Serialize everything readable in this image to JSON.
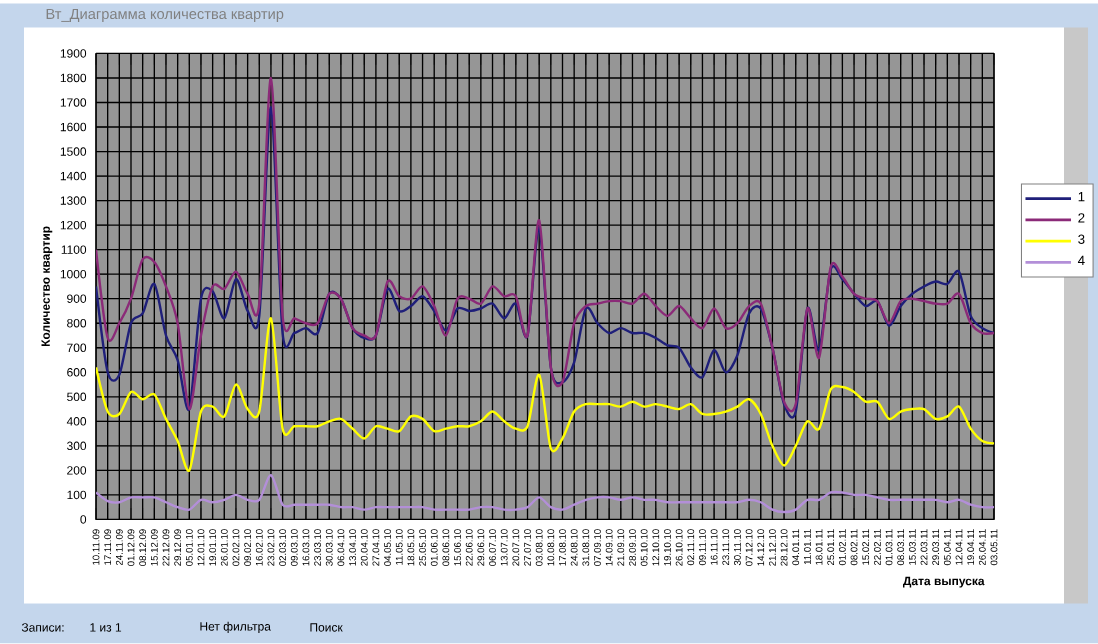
{
  "chart_data": {
    "type": "line",
    "title": "Вт_Диаграмма количества квартир",
    "xlabel": "Дата выпуска",
    "ylabel": "Количество квартир",
    "categories": [
      "10.11.09",
      "17.11.09",
      "24.11.09",
      "01.12.09",
      "08.12.09",
      "15.12.09",
      "22.12.09",
      "29.12.09",
      "05.01.10",
      "12.01.10",
      "19.01.10",
      "26.01.10",
      "02.02.10",
      "09.02.10",
      "16.02.10",
      "23.02.10",
      "02.03.10",
      "09.03.10",
      "16.03.10",
      "23.03.10",
      "30.03.10",
      "06.04.10",
      "13.04.10",
      "20.04.10",
      "27.04.10",
      "04.05.10",
      "11.05.10",
      "18.05.10",
      "25.05.10",
      "01.06.10",
      "08.06.10",
      "15.06.10",
      "22.06.10",
      "29.06.10",
      "06.07.10",
      "13.07.10",
      "20.07.10",
      "27.07.10",
      "03.08.10",
      "10.08.10",
      "17.08.10",
      "24.08.10",
      "31.08.10",
      "07.09.10",
      "14.09.10",
      "21.09.10",
      "28.09.10",
      "05.10.10",
      "12.10.10",
      "19.10.10",
      "26.10.10",
      "02.11.10",
      "09.11.10",
      "16.11.10",
      "23.11.10",
      "30.11.10",
      "07.12.10",
      "14.12.10",
      "21.12.10",
      "28.12.10",
      "04.01.11",
      "11.01.11",
      "18.01.11",
      "25.01.11",
      "01.02.11",
      "08.02.11",
      "15.02.11",
      "22.02.11",
      "01.03.11",
      "08.03.11",
      "15.03.11",
      "22.03.11",
      "29.03.11",
      "05.04.11",
      "12.04.11",
      "19.04.11",
      "26.04.11",
      "03.05.11"
    ],
    "series": [
      {
        "name": "1",
        "color": "#1f1f7a",
        "values": [
          950,
          600,
          590,
          800,
          840,
          960,
          750,
          650,
          450,
          900,
          930,
          820,
          980,
          850,
          830,
          1680,
          760,
          760,
          780,
          760,
          920,
          900,
          780,
          740,
          750,
          940,
          850,
          870,
          910,
          850,
          770,
          860,
          850,
          860,
          880,
          820,
          880,
          750,
          1190,
          620,
          560,
          640,
          860,
          800,
          760,
          780,
          760,
          760,
          740,
          710,
          700,
          620,
          580,
          690,
          600,
          670,
          840,
          860,
          700,
          470,
          440,
          860,
          690,
          1020,
          980,
          920,
          870,
          890,
          790,
          870,
          920,
          950,
          970,
          960,
          1010,
          830,
          780,
          760
        ]
      },
      {
        "name": "2",
        "color": "#8b2a78",
        "values": [
          1100,
          740,
          800,
          900,
          1060,
          1050,
          950,
          800,
          450,
          750,
          950,
          940,
          1010,
          920,
          880,
          1800,
          830,
          820,
          800,
          800,
          920,
          900,
          780,
          750,
          750,
          970,
          910,
          900,
          950,
          870,
          750,
          900,
          900,
          880,
          950,
          910,
          910,
          750,
          1220,
          620,
          560,
          800,
          870,
          880,
          890,
          890,
          880,
          920,
          870,
          830,
          870,
          820,
          780,
          860,
          780,
          800,
          870,
          880,
          700,
          480,
          470,
          860,
          660,
          1030,
          990,
          920,
          900,
          890,
          800,
          890,
          900,
          890,
          880,
          880,
          920,
          800,
          760,
          760
        ]
      },
      {
        "name": "3",
        "color": "#ffff00",
        "values": [
          620,
          440,
          430,
          520,
          490,
          510,
          410,
          320,
          200,
          440,
          460,
          420,
          550,
          450,
          440,
          820,
          370,
          380,
          380,
          380,
          400,
          410,
          370,
          330,
          380,
          370,
          360,
          420,
          410,
          360,
          370,
          380,
          380,
          400,
          440,
          400,
          370,
          380,
          590,
          290,
          330,
          440,
          470,
          470,
          470,
          460,
          480,
          460,
          470,
          460,
          450,
          470,
          430,
          430,
          440,
          460,
          490,
          430,
          300,
          220,
          300,
          400,
          370,
          530,
          540,
          520,
          480,
          480,
          410,
          440,
          450,
          450,
          410,
          420,
          460,
          370,
          320,
          310
        ]
      },
      {
        "name": "4",
        "color": "#b38fd8",
        "values": [
          110,
          75,
          70,
          90,
          90,
          90,
          70,
          50,
          40,
          80,
          70,
          80,
          100,
          80,
          80,
          180,
          60,
          60,
          60,
          60,
          60,
          50,
          50,
          40,
          50,
          50,
          50,
          50,
          50,
          40,
          40,
          40,
          40,
          50,
          50,
          40,
          40,
          50,
          90,
          50,
          40,
          60,
          80,
          90,
          90,
          80,
          90,
          80,
          80,
          70,
          70,
          70,
          70,
          70,
          70,
          70,
          80,
          70,
          40,
          30,
          40,
          80,
          80,
          110,
          110,
          100,
          100,
          90,
          80,
          80,
          80,
          80,
          80,
          70,
          80,
          60,
          50,
          50
        ]
      }
    ],
    "ylim": [
      0,
      1900
    ],
    "yticks": [
      0,
      100,
      200,
      300,
      400,
      500,
      600,
      700,
      800,
      900,
      1000,
      1100,
      1200,
      1300,
      1400,
      1500,
      1600,
      1700,
      1800,
      1900
    ],
    "grid": true,
    "legend": "right",
    "annotations": [
      "Записи:",
      "1 из 1",
      "Нет фильтра",
      "Поиск"
    ]
  }
}
